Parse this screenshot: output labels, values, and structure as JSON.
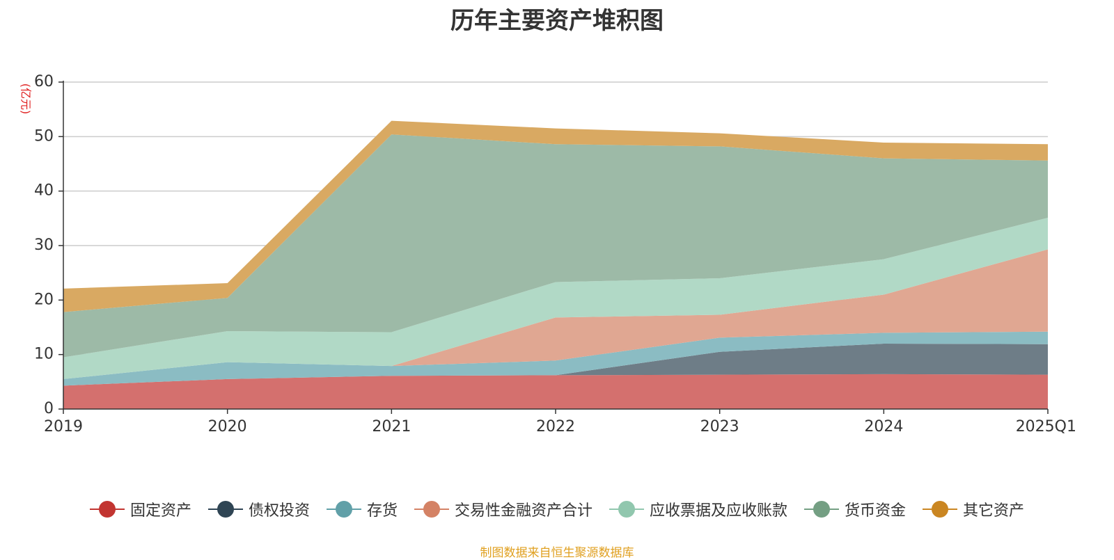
{
  "chart_data": {
    "type": "area",
    "title": "历年主要资产堆积图",
    "unit_label": "(亿元)",
    "source_note": "制图数据来自恒生聚源数据库",
    "x": [
      "2019",
      "2020",
      "2021",
      "2022",
      "2023",
      "2024",
      "2025Q1"
    ],
    "ylim": [
      0,
      60
    ],
    "yticks": [
      0,
      10,
      20,
      30,
      40,
      50,
      60
    ],
    "grid": true,
    "legend_position": "bottom",
    "stacked": true,
    "series": [
      {
        "name": "固定资产",
        "color": "#c23531",
        "area_color": "#d4706e",
        "values": [
          4.3,
          5.5,
          6.1,
          6.2,
          6.3,
          6.4,
          6.3
        ]
      },
      {
        "name": "债权投资",
        "color": "#2f4554",
        "area_color": "#6e7d87",
        "values": [
          0,
          0,
          0,
          0,
          4.2,
          5.6,
          5.6
        ]
      },
      {
        "name": "存货",
        "color": "#61a0a8",
        "area_color": "#8bbcc3",
        "values": [
          1.2,
          3.1,
          1.8,
          2.7,
          2.6,
          2.0,
          2.3
        ]
      },
      {
        "name": "交易性金融资产合计",
        "color": "#d48265",
        "area_color": "#e0a792",
        "values": [
          0,
          0,
          0,
          7.9,
          4.2,
          7.0,
          15.1
        ]
      },
      {
        "name": "应收票据及应收账款",
        "color": "#91c7ae",
        "area_color": "#b1d9c6",
        "values": [
          4.0,
          5.7,
          6.2,
          6.5,
          6.7,
          6.5,
          5.8
        ]
      },
      {
        "name": "货币资金",
        "color": "#749f83",
        "area_color": "#9dbaa7",
        "values": [
          8.3,
          6.1,
          36.3,
          25.3,
          24.2,
          18.5,
          10.5
        ]
      },
      {
        "name": "其它资产",
        "color": "#ca8622",
        "area_color": "#d9a962",
        "values": [
          4.3,
          2.7,
          2.5,
          2.9,
          2.4,
          2.9,
          3.0
        ]
      }
    ]
  }
}
